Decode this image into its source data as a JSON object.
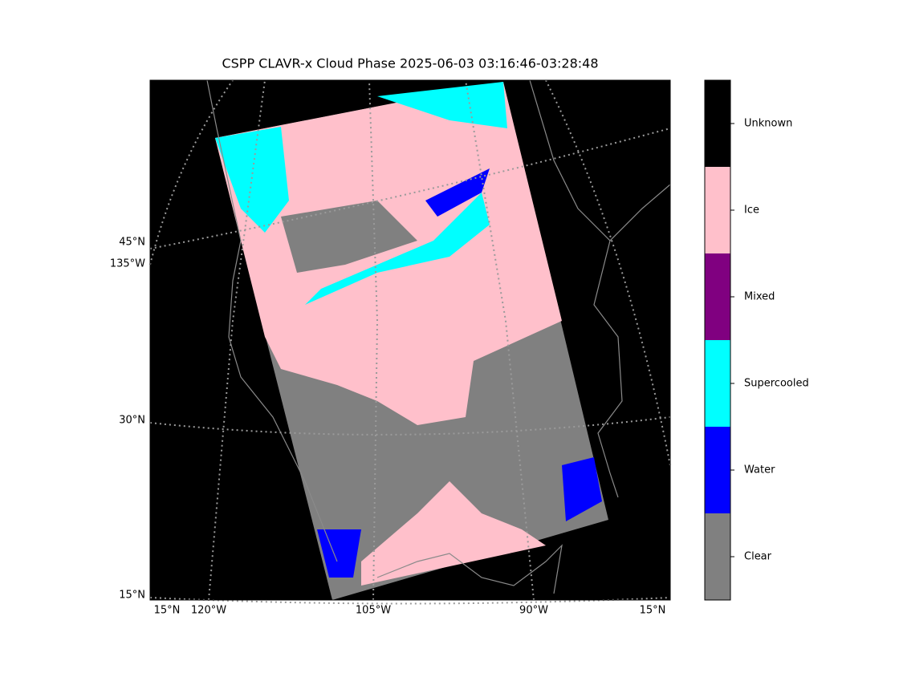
{
  "title": "CSPP CLAVR-x Cloud Phase 2025-06-03 03:16:46-03:28:48",
  "map_labels": {
    "left": [
      "45°N",
      "135°W",
      "30°N",
      "15°N"
    ],
    "bottom": [
      "15°N",
      "120°W",
      "105°W",
      "90°W",
      "15°N"
    ]
  },
  "colorbar": {
    "categories": [
      {
        "label": "Unknown",
        "color": "#000000"
      },
      {
        "label": "Ice",
        "color": "#ffc0cb"
      },
      {
        "label": "Mixed",
        "color": "#800080"
      },
      {
        "label": "Supercooled",
        "color": "#00ffff"
      },
      {
        "label": "Water",
        "color": "#0000ff"
      },
      {
        "label": "Clear",
        "color": "#808080"
      }
    ]
  }
}
